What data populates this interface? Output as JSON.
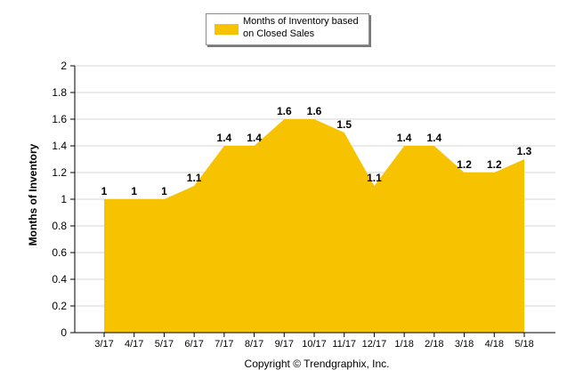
{
  "colors": {
    "area": "#f7c300",
    "grid": "#d4d4d4",
    "axis": "#000000"
  },
  "footer": {
    "copyright": "Copyright © Trendgraphix, Inc."
  },
  "chart_data": {
    "type": "area",
    "categories": [
      "3/17",
      "4/17",
      "5/17",
      "6/17",
      "7/17",
      "8/17",
      "9/17",
      "10/17",
      "11/17",
      "12/17",
      "1/18",
      "2/18",
      "3/18",
      "4/18",
      "5/18"
    ],
    "series": [
      {
        "name": "Months of Inventory based on Closed Sales",
        "values": [
          1,
          1,
          1,
          1.1,
          1.4,
          1.4,
          1.6,
          1.6,
          1.5,
          1.1,
          1.4,
          1.4,
          1.2,
          1.2,
          1.3
        ]
      }
    ],
    "data_labels": [
      "1",
      "1",
      "1",
      "1.1",
      "1.4",
      "1.4",
      "1.6",
      "1.6",
      "1.5",
      "1.1",
      "1.4",
      "1.4",
      "1.2",
      "1.2",
      "1.3"
    ],
    "ylabel": "Months of Inventory",
    "xlabel": "",
    "ylim": [
      0,
      2
    ],
    "yticks": [
      "0",
      "0.2",
      "0.4",
      "0.6",
      "0.8",
      "1",
      "1.2",
      "1.4",
      "1.6",
      "1.8",
      "2"
    ],
    "grid": true,
    "legend_position": "top-center"
  }
}
